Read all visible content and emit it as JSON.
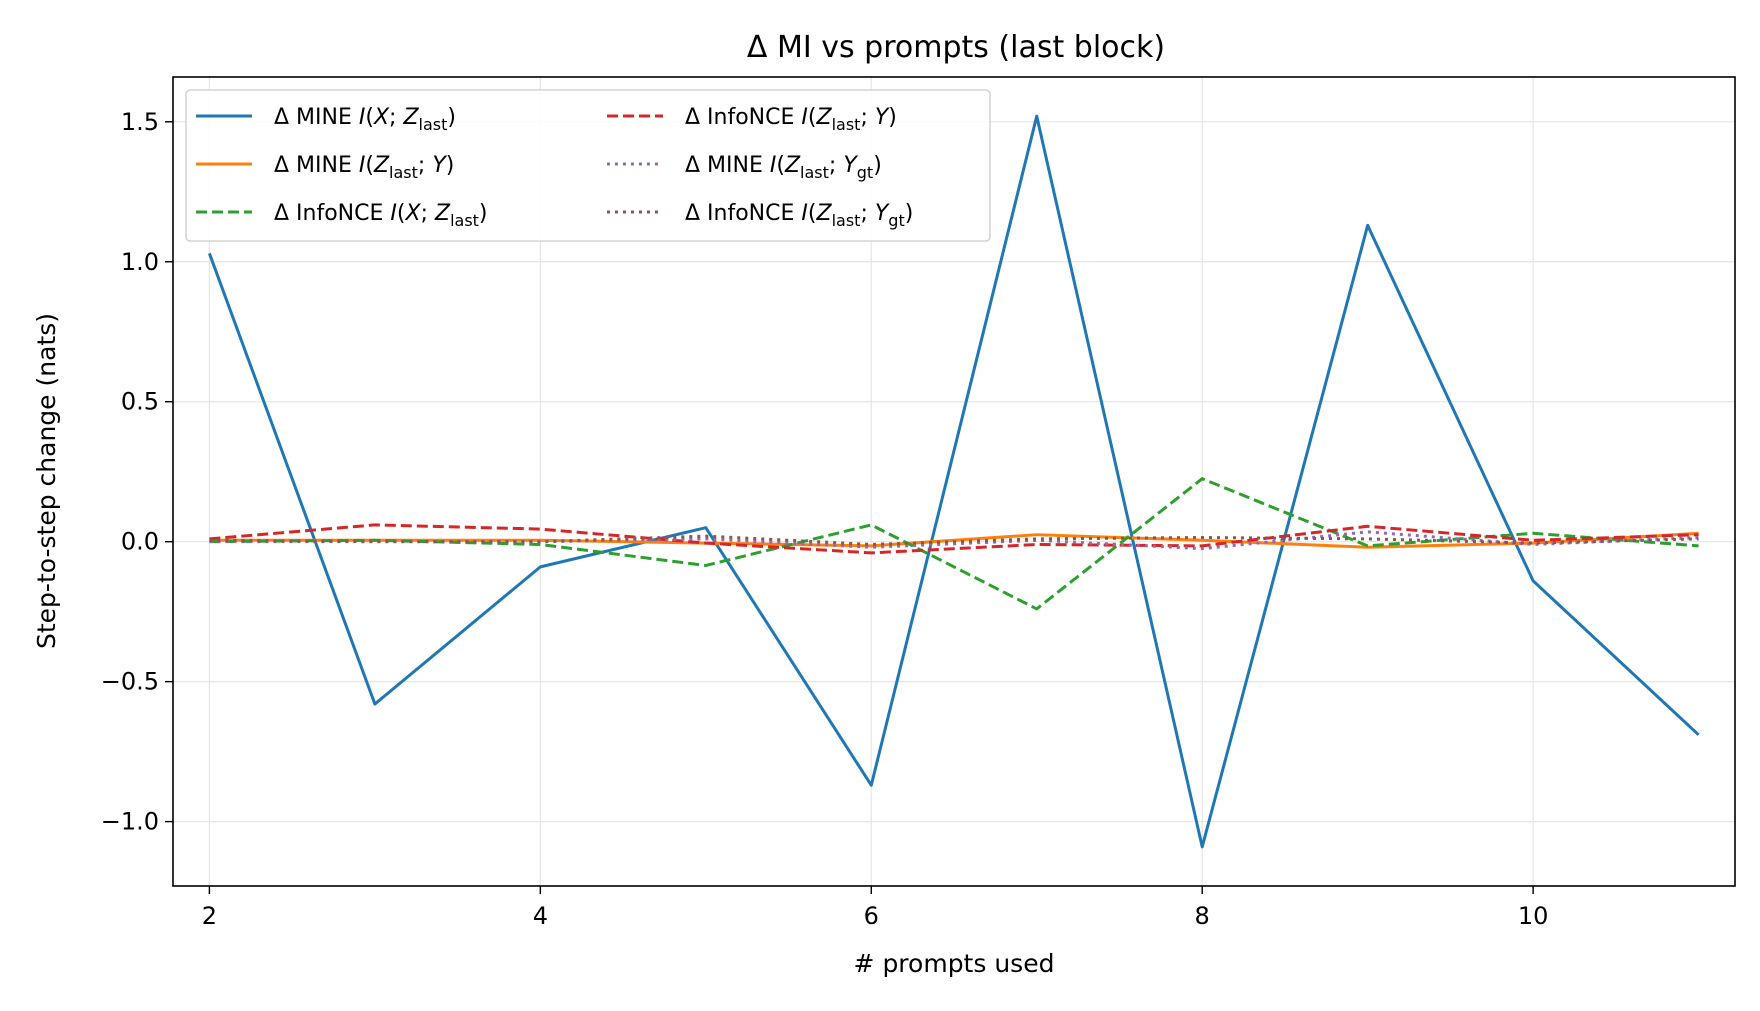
{
  "chart_data": {
    "type": "line",
    "title": "Δ MI vs prompts (last block)",
    "xlabel": "# prompts used",
    "ylabel": "Step-to-step change (nats)",
    "xlim": [
      1.78,
      11.22
    ],
    "ylim": [
      -1.23,
      1.66
    ],
    "xticks": [
      2,
      4,
      6,
      8,
      10
    ],
    "xtick_labels": [
      "2",
      "4",
      "6",
      "8",
      "10"
    ],
    "yticks": [
      -1.0,
      -0.5,
      0.0,
      0.5,
      1.0,
      1.5
    ],
    "ytick_labels": [
      "−1.0",
      "−0.5",
      "0.0",
      "0.5",
      "1.0",
      "1.5"
    ],
    "grid": true,
    "legend_position": "top-left",
    "x": [
      2,
      3,
      4,
      5,
      6,
      7,
      8,
      9,
      10,
      11
    ],
    "series": [
      {
        "name_parts": [
          "Δ MINE  ",
          "I",
          "(",
          "X",
          "; ",
          "Z",
          "last",
          ")"
        ],
        "color": "#1f77b4",
        "style": "solid",
        "values": [
          1.03,
          -0.58,
          -0.09,
          0.05,
          -0.87,
          1.52,
          -1.09,
          1.13,
          -0.14,
          -0.69
        ]
      },
      {
        "name_parts": [
          "Δ MINE  ",
          "I",
          "(",
          "Z",
          "last",
          "; ",
          "Y",
          ")"
        ],
        "color": "#ff7f0e",
        "style": "solid",
        "values": [
          0.005,
          0.005,
          0.005,
          -0.005,
          -0.015,
          0.025,
          0.005,
          -0.02,
          -0.005,
          0.03
        ]
      },
      {
        "name_parts": [
          "Δ InfoNCE  ",
          "I",
          "(",
          "X",
          "; ",
          "Z",
          "last",
          ")"
        ],
        "color": "#2ca02c",
        "style": "dashed",
        "values": [
          0.0,
          0.005,
          -0.01,
          -0.085,
          0.06,
          -0.24,
          0.225,
          -0.015,
          0.03,
          -0.015
        ]
      },
      {
        "name_parts": [
          "Δ InfoNCE  ",
          "I",
          "(",
          "Z",
          "last",
          "; ",
          "Y",
          ")"
        ],
        "color": "#d62728",
        "style": "dashed",
        "values": [
          0.01,
          0.06,
          0.045,
          -0.005,
          -0.04,
          -0.01,
          -0.015,
          0.055,
          0.005,
          0.025
        ]
      },
      {
        "name_parts": [
          "Δ MINE  ",
          "I",
          "(",
          "Z",
          "last",
          "; ",
          "Y",
          "gt",
          ")"
        ],
        "color": "#9467bd",
        "style": "dotted",
        "values": [
          0.0,
          0.0,
          0.0,
          0.01,
          -0.02,
          0.005,
          -0.025,
          0.035,
          -0.01,
          0.015
        ]
      },
      {
        "name_parts": [
          "Δ InfoNCE  ",
          "I",
          "(",
          "Z",
          "last",
          "; ",
          "Y",
          "gt",
          ")"
        ],
        "color": "#8c564b",
        "style": "dotted",
        "values": [
          0.005,
          0.0,
          0.0,
          0.02,
          -0.01,
          0.01,
          0.015,
          0.01,
          -0.005,
          0.01
        ]
      }
    ]
  }
}
